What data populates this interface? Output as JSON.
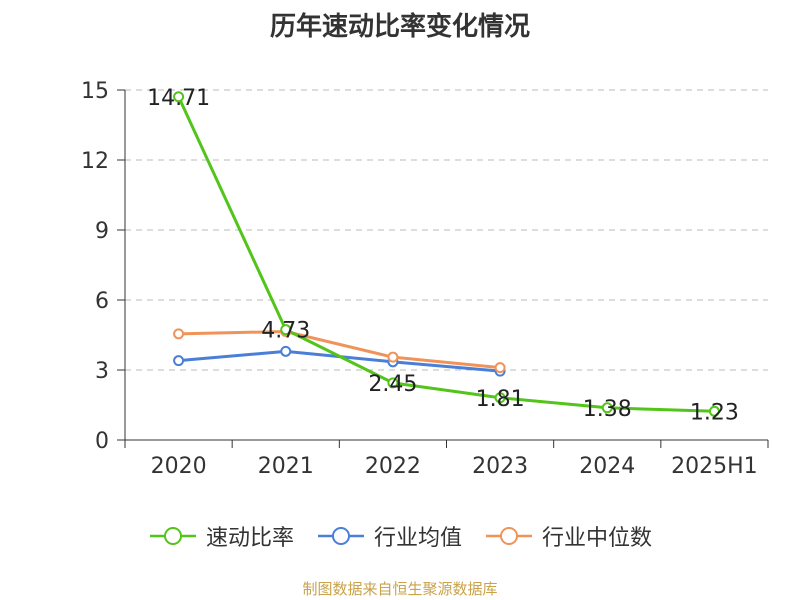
{
  "chart_data": {
    "type": "line",
    "title": "历年速动比率变化情况",
    "categories": [
      "2020",
      "2021",
      "2022",
      "2023",
      "2024",
      "2025H1"
    ],
    "ylim": [
      0,
      15
    ],
    "yticks": [
      0,
      3,
      6,
      9,
      12,
      15
    ],
    "grid": true,
    "legend_position": "bottom",
    "series": [
      {
        "name": "速动比率",
        "color": "#52c41a",
        "values": [
          14.71,
          4.73,
          2.45,
          1.81,
          1.38,
          1.23
        ],
        "labels": [
          "14.71",
          "4.73",
          "2.45",
          "1.81",
          "1.38",
          "1.23"
        ]
      },
      {
        "name": "行业均值",
        "color": "#4a7fd8",
        "values": [
          3.4,
          3.8,
          3.35,
          2.95,
          null,
          null
        ]
      },
      {
        "name": "行业中位数",
        "color": "#f0935a",
        "values": [
          4.55,
          4.65,
          3.55,
          3.1,
          null,
          null
        ]
      }
    ]
  },
  "source": "制图数据来自恒生聚源数据库"
}
